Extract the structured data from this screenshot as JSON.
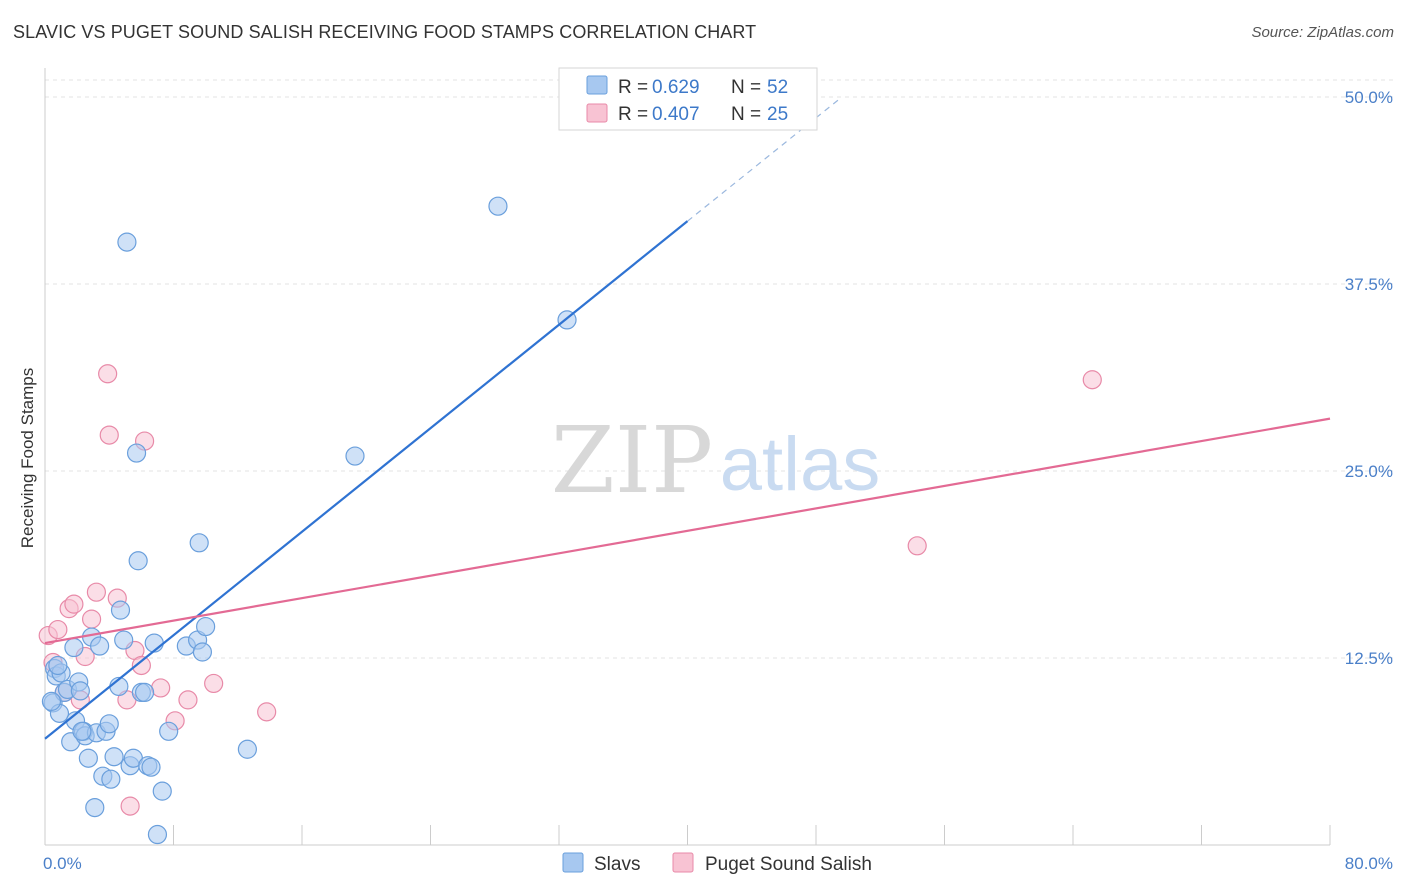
{
  "title": "SLAVIC VS PUGET SOUND SALISH RECEIVING FOOD STAMPS CORRELATION CHART",
  "source": "Source: ZipAtlas.com",
  "watermark": {
    "zip": "ZIP",
    "atlas": "atlas"
  },
  "chart_data": {
    "type": "scatter",
    "title": "SLAVIC VS PUGET SOUND SALISH RECEIVING FOOD STAMPS CORRELATION CHART",
    "xlabel": "",
    "ylabel": "Receiving Food Stamps",
    "xlim": [
      0,
      80
    ],
    "ylim": [
      0,
      50
    ],
    "x_tick_labels": [
      "0.0%",
      "80.0%"
    ],
    "y_ticks": [
      12.5,
      25.0,
      37.5,
      50.0
    ],
    "y_tick_labels": [
      "12.5%",
      "25.0%",
      "37.5%",
      "50.0%"
    ],
    "grid": true,
    "legend": [
      {
        "name": "Slavs",
        "r_label": "R =",
        "r": "0.629",
        "n_label": "N =",
        "n": "52",
        "color": "#a7c8f0",
        "stroke": "#6a9fdc"
      },
      {
        "name": "Puget Sound Salish",
        "r_label": "R =",
        "r": "0.407",
        "n_label": "N =",
        "n": "25",
        "color": "#f8c3d3",
        "stroke": "#e88aa8"
      }
    ],
    "series": [
      {
        "name": "Slavs",
        "color": "#a7c8f0",
        "stroke": "#6a9fdc",
        "line_color": "#2f73d2",
        "trend": {
          "x0": 0,
          "y0": 7.1,
          "x1": 40,
          "y1": 41.7,
          "dash_to_x": 49.5,
          "dash_to_y": 49.9
        },
        "points": [
          [
            0.5,
            9.5
          ],
          [
            0.6,
            11.8
          ],
          [
            0.7,
            11.3
          ],
          [
            0.9,
            8.8
          ],
          [
            1.0,
            11.5
          ],
          [
            1.2,
            10.2
          ],
          [
            1.4,
            10.4
          ],
          [
            1.6,
            6.9
          ],
          [
            1.8,
            13.2
          ],
          [
            1.9,
            8.3
          ],
          [
            2.1,
            10.9
          ],
          [
            2.2,
            10.3
          ],
          [
            2.4,
            7.6
          ],
          [
            2.5,
            7.3
          ],
          [
            2.7,
            5.8
          ],
          [
            2.9,
            13.9
          ],
          [
            3.1,
            2.5
          ],
          [
            3.2,
            7.5
          ],
          [
            3.4,
            13.3
          ],
          [
            3.6,
            4.6
          ],
          [
            3.8,
            7.6
          ],
          [
            4.0,
            8.1
          ],
          [
            4.1,
            4.4
          ],
          [
            4.3,
            5.9
          ],
          [
            4.6,
            10.6
          ],
          [
            4.7,
            15.7
          ],
          [
            4.9,
            13.7
          ],
          [
            5.1,
            40.3
          ],
          [
            5.3,
            5.3
          ],
          [
            5.5,
            5.8
          ],
          [
            5.7,
            26.2
          ],
          [
            5.8,
            19.0
          ],
          [
            6.0,
            10.2
          ],
          [
            6.2,
            10.2
          ],
          [
            6.4,
            5.3
          ],
          [
            6.6,
            5.2
          ],
          [
            6.8,
            13.5
          ],
          [
            7.0,
            0.7
          ],
          [
            7.3,
            3.6
          ],
          [
            7.7,
            7.6
          ],
          [
            8.8,
            13.3
          ],
          [
            9.5,
            13.7
          ],
          [
            9.6,
            20.2
          ],
          [
            9.8,
            12.9
          ],
          [
            10.0,
            14.6
          ],
          [
            12.6,
            6.4
          ],
          [
            19.3,
            26.0
          ],
          [
            28.2,
            42.7
          ],
          [
            32.5,
            35.1
          ],
          [
            0.4,
            9.6
          ],
          [
            0.8,
            12.0
          ],
          [
            2.3,
            7.6
          ]
        ]
      },
      {
        "name": "Puget Sound Salish",
        "color": "#f8c3d3",
        "stroke": "#e88aa8",
        "line_color": "#e36a94",
        "trend": {
          "x0": 0,
          "y0": 13.5,
          "x1": 80,
          "y1": 28.5
        },
        "points": [
          [
            0.2,
            14.0
          ],
          [
            0.5,
            12.2
          ],
          [
            0.8,
            14.4
          ],
          [
            1.2,
            10.2
          ],
          [
            1.5,
            15.8
          ],
          [
            1.8,
            16.1
          ],
          [
            2.2,
            9.7
          ],
          [
            2.5,
            12.6
          ],
          [
            2.9,
            15.1
          ],
          [
            3.2,
            16.9
          ],
          [
            3.9,
            31.5
          ],
          [
            4.0,
            27.4
          ],
          [
            4.5,
            16.5
          ],
          [
            5.1,
            9.7
          ],
          [
            5.3,
            2.6
          ],
          [
            5.6,
            13.0
          ],
          [
            6.0,
            12.0
          ],
          [
            6.2,
            27.0
          ],
          [
            7.2,
            10.5
          ],
          [
            8.1,
            8.3
          ],
          [
            8.9,
            9.7
          ],
          [
            10.5,
            10.8
          ],
          [
            13.8,
            8.9
          ],
          [
            54.3,
            20.0
          ],
          [
            65.2,
            31.1
          ]
        ]
      }
    ]
  }
}
